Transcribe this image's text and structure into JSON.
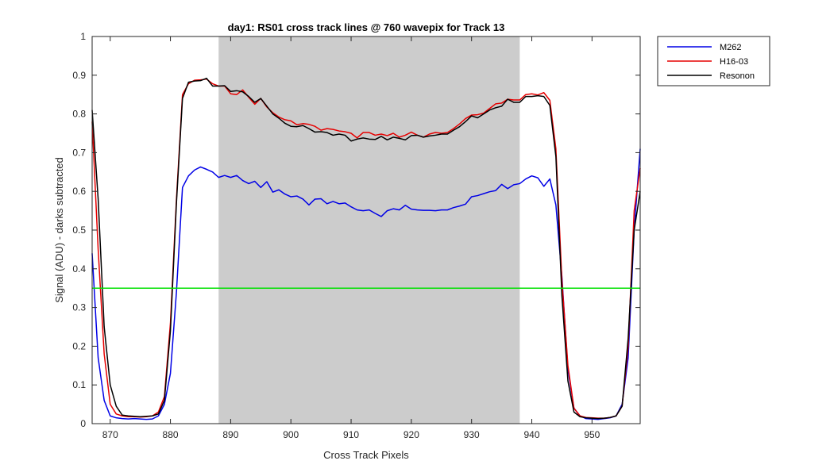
{
  "chart_data": {
    "type": "line",
    "title": "day1: RS01  cross track lines @ 760 wavepix for Track 13",
    "xlabel": "Cross Track Pixels",
    "ylabel": "Signal (ADU) - darks subtracted",
    "xlim": [
      867,
      958
    ],
    "ylim": [
      0,
      1
    ],
    "xticks": [
      870,
      880,
      890,
      900,
      910,
      920,
      930,
      940,
      950
    ],
    "yticks": [
      0,
      0.1,
      0.2,
      0.3,
      0.4,
      0.5,
      0.6,
      0.7,
      0.8,
      0.9,
      1
    ],
    "xtick_labels": [
      "870",
      "880",
      "890",
      "900",
      "910",
      "920",
      "930",
      "940",
      "950"
    ],
    "ytick_labels": [
      "0",
      "0.1",
      "0.2",
      "0.3",
      "0.4",
      "0.5",
      "0.6",
      "0.7",
      "0.8",
      "0.9",
      "1"
    ],
    "grid": false,
    "legend_position": "outside-top-right",
    "shaded_region": {
      "x": [
        888,
        938
      ],
      "color": "#cccccc"
    },
    "threshold_line": {
      "y": 0.35,
      "color": "#00e000"
    },
    "series": [
      {
        "name": "M262",
        "color": "#0000e6",
        "x": [
          867,
          868,
          869,
          870,
          871,
          872,
          873,
          874,
          875,
          876,
          877,
          878,
          879,
          880,
          881,
          882,
          883,
          884,
          885,
          886,
          887,
          888,
          889,
          890,
          891,
          892,
          893,
          894,
          895,
          896,
          897,
          898,
          899,
          900,
          901,
          902,
          903,
          904,
          905,
          906,
          907,
          908,
          909,
          910,
          911,
          912,
          913,
          914,
          915,
          916,
          917,
          918,
          919,
          920,
          921,
          922,
          923,
          924,
          925,
          926,
          927,
          928,
          929,
          930,
          931,
          932,
          933,
          934,
          935,
          936,
          937,
          938,
          939,
          940,
          941,
          942,
          943,
          944,
          945,
          946,
          947,
          948,
          949,
          950,
          951,
          952,
          953,
          954,
          955,
          956,
          957,
          958
        ],
        "y": [
          0.44,
          0.17,
          0.06,
          0.02,
          0.015,
          0.013,
          0.012,
          0.013,
          0.012,
          0.011,
          0.012,
          0.02,
          0.05,
          0.13,
          0.34,
          0.61,
          0.64,
          0.655,
          0.663,
          0.657,
          0.65,
          0.636,
          0.641,
          0.636,
          0.641,
          0.628,
          0.62,
          0.626,
          0.61,
          0.625,
          0.598,
          0.604,
          0.593,
          0.586,
          0.588,
          0.58,
          0.565,
          0.58,
          0.581,
          0.568,
          0.574,
          0.568,
          0.57,
          0.56,
          0.552,
          0.55,
          0.552,
          0.543,
          0.535,
          0.55,
          0.555,
          0.552,
          0.564,
          0.554,
          0.552,
          0.551,
          0.551,
          0.55,
          0.552,
          0.552,
          0.558,
          0.562,
          0.567,
          0.586,
          0.589,
          0.594,
          0.599,
          0.602,
          0.618,
          0.607,
          0.617,
          0.62,
          0.632,
          0.64,
          0.635,
          0.613,
          0.632,
          0.565,
          0.38,
          0.14,
          0.04,
          0.02,
          0.013,
          0.012,
          0.011,
          0.013,
          0.015,
          0.02,
          0.05,
          0.17,
          0.5,
          0.71
        ]
      },
      {
        "name": "H16-03",
        "color": "#e60000",
        "x": [
          867,
          868,
          869,
          870,
          871,
          872,
          873,
          874,
          875,
          876,
          877,
          878,
          879,
          880,
          881,
          882,
          883,
          884,
          885,
          886,
          887,
          888,
          889,
          890,
          891,
          892,
          893,
          894,
          895,
          896,
          897,
          898,
          899,
          900,
          901,
          902,
          903,
          904,
          905,
          906,
          907,
          908,
          909,
          910,
          911,
          912,
          913,
          914,
          915,
          916,
          917,
          918,
          919,
          920,
          921,
          922,
          923,
          924,
          925,
          926,
          927,
          928,
          929,
          930,
          931,
          932,
          933,
          934,
          935,
          936,
          937,
          938,
          939,
          940,
          941,
          942,
          943,
          944,
          945,
          946,
          947,
          948,
          949,
          950,
          951,
          952,
          953,
          954,
          955,
          956,
          957,
          958
        ],
        "y": [
          0.78,
          0.45,
          0.18,
          0.05,
          0.025,
          0.02,
          0.018,
          0.018,
          0.017,
          0.018,
          0.02,
          0.03,
          0.07,
          0.26,
          0.58,
          0.85,
          0.878,
          0.887,
          0.888,
          0.89,
          0.878,
          0.872,
          0.872,
          0.852,
          0.85,
          0.862,
          0.843,
          0.825,
          0.84,
          0.818,
          0.803,
          0.792,
          0.785,
          0.782,
          0.772,
          0.775,
          0.773,
          0.768,
          0.758,
          0.762,
          0.76,
          0.756,
          0.754,
          0.75,
          0.738,
          0.752,
          0.752,
          0.745,
          0.748,
          0.744,
          0.75,
          0.74,
          0.745,
          0.753,
          0.745,
          0.74,
          0.748,
          0.752,
          0.75,
          0.752,
          0.762,
          0.774,
          0.788,
          0.797,
          0.798,
          0.802,
          0.814,
          0.826,
          0.828,
          0.838,
          0.836,
          0.836,
          0.85,
          0.852,
          0.849,
          0.855,
          0.835,
          0.71,
          0.37,
          0.15,
          0.04,
          0.02,
          0.016,
          0.015,
          0.014,
          0.014,
          0.016,
          0.02,
          0.045,
          0.2,
          0.55,
          0.66
        ]
      },
      {
        "name": "Resonon",
        "color": "#000000",
        "x": [
          867,
          868,
          869,
          870,
          871,
          872,
          873,
          874,
          875,
          876,
          877,
          878,
          879,
          880,
          881,
          882,
          883,
          884,
          885,
          886,
          887,
          888,
          889,
          890,
          891,
          892,
          893,
          894,
          895,
          896,
          897,
          898,
          899,
          900,
          901,
          902,
          903,
          904,
          905,
          906,
          907,
          908,
          909,
          910,
          911,
          912,
          913,
          914,
          915,
          916,
          917,
          918,
          919,
          920,
          921,
          922,
          923,
          924,
          925,
          926,
          927,
          928,
          929,
          930,
          931,
          932,
          933,
          934,
          935,
          936,
          937,
          938,
          939,
          940,
          941,
          942,
          943,
          944,
          945,
          946,
          947,
          948,
          949,
          950,
          951,
          952,
          953,
          954,
          955,
          956,
          957,
          958
        ],
        "y": [
          0.81,
          0.58,
          0.25,
          0.1,
          0.045,
          0.022,
          0.02,
          0.019,
          0.018,
          0.019,
          0.02,
          0.025,
          0.06,
          0.24,
          0.57,
          0.84,
          0.882,
          0.885,
          0.886,
          0.892,
          0.872,
          0.872,
          0.873,
          0.858,
          0.86,
          0.857,
          0.845,
          0.83,
          0.84,
          0.82,
          0.8,
          0.789,
          0.776,
          0.768,
          0.767,
          0.77,
          0.762,
          0.753,
          0.754,
          0.752,
          0.745,
          0.748,
          0.745,
          0.73,
          0.735,
          0.738,
          0.735,
          0.734,
          0.742,
          0.733,
          0.74,
          0.737,
          0.733,
          0.744,
          0.745,
          0.74,
          0.743,
          0.745,
          0.748,
          0.748,
          0.758,
          0.767,
          0.78,
          0.795,
          0.79,
          0.8,
          0.81,
          0.816,
          0.82,
          0.838,
          0.83,
          0.83,
          0.845,
          0.845,
          0.847,
          0.845,
          0.822,
          0.69,
          0.33,
          0.11,
          0.03,
          0.018,
          0.015,
          0.014,
          0.013,
          0.014,
          0.016,
          0.02,
          0.045,
          0.22,
          0.5,
          0.6
        ]
      }
    ]
  }
}
